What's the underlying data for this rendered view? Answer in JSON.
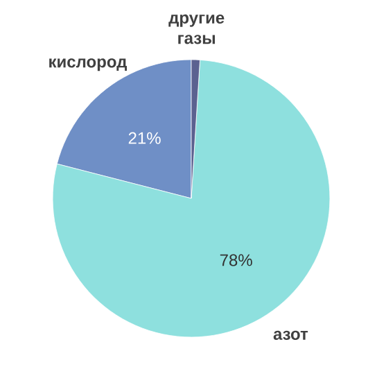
{
  "chart_data": {
    "type": "pie",
    "categories": [
      "кислород",
      "азот",
      "другие газы"
    ],
    "values": [
      21,
      78,
      1
    ],
    "colors": [
      "#6f8fc6",
      "#8ee0de",
      "#5b6190"
    ],
    "value_labels": [
      "21%",
      "78%",
      null
    ]
  }
}
